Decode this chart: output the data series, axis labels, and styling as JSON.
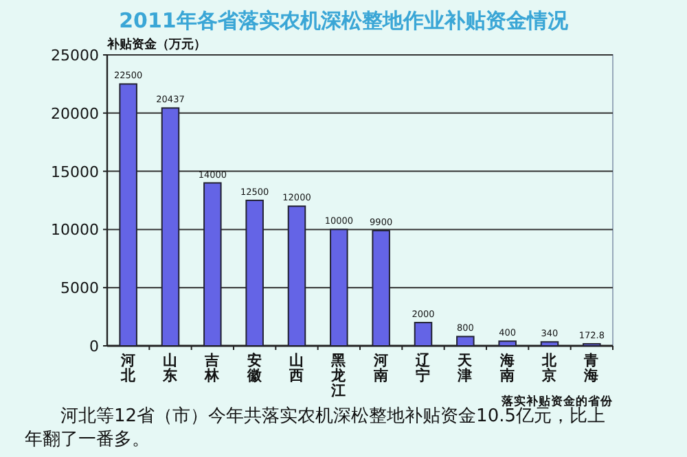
{
  "chart_data": {
    "type": "bar",
    "title": "2011年各省落实农机深松整地作业补贴资金情况",
    "ylabel": "补贴资金（万元）",
    "xlabel": "落实补贴资金的省份",
    "categories": [
      "河北",
      "山东",
      "吉林",
      "安徽",
      "山西",
      "黑龙江",
      "河南",
      "辽宁",
      "天津",
      "海南",
      "北京",
      "青海"
    ],
    "values": [
      22500,
      20437,
      14000,
      12500,
      12000,
      10000,
      9900,
      2000,
      800,
      400,
      340,
      172.8
    ],
    "color": "#6464e6",
    "ylim": [
      0,
      25000
    ],
    "yticks": [
      0,
      5000,
      10000,
      15000,
      20000,
      25000
    ],
    "grid": "y",
    "data_labels": true,
    "annotations": [
      "河北等12省（市）今年共落实农机深松整地补贴资金10.5亿元，比上年翻了一番多。"
    ]
  }
}
